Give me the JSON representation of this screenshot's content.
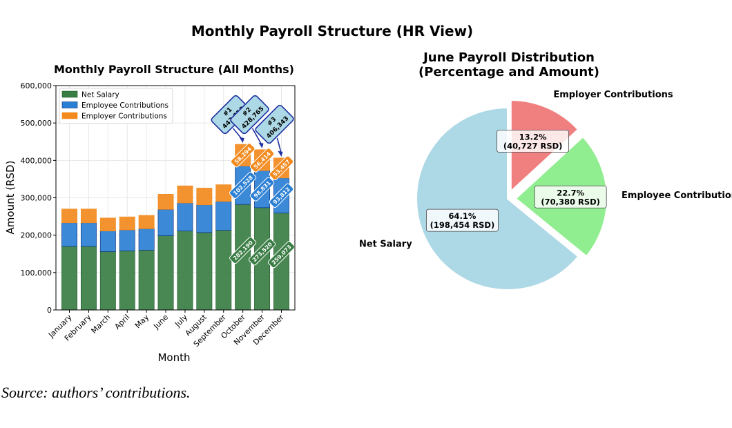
{
  "figure": {
    "suptitle": "Monthly Payroll Structure (HR View)",
    "caption": "Source: authors’ contributions."
  },
  "colors": {
    "net_salary": "#3a7d44",
    "employee_contributions": "#2a7fd4",
    "employer_contributions": "#f28a1e",
    "pie_net_salary": "#add8e6",
    "pie_employee": "#90ee90",
    "pie_employer": "#f08080",
    "callout_fill": "#add8e6",
    "callout_stroke": "#1c2ea0"
  },
  "chart_data": [
    {
      "type": "bar",
      "stacked": true,
      "title": "Monthly Payroll Structure (All Months)",
      "xlabel": "Month",
      "ylabel": "Amount (RSD)",
      "ylim": [
        0,
        600000
      ],
      "yticks": [
        "0",
        "100,000",
        "200,000",
        "300,000",
        "400,000",
        "500,000",
        "600,000"
      ],
      "grid": true,
      "legend_position": "upper-left",
      "categories": [
        "January",
        "February",
        "March",
        "April",
        "May",
        "June",
        "July",
        "August",
        "September",
        "October",
        "November",
        "December"
      ],
      "series": [
        {
          "name": "Net Salary",
          "values": [
            170000,
            170000,
            156000,
            158000,
            160000,
            198454,
            211000,
            207000,
            213000,
            282190,
            273520,
            259073
          ]
        },
        {
          "name": "Employee Contributions",
          "values": [
            63000,
            63000,
            55000,
            56000,
            57000,
            70380,
            75000,
            74000,
            77000,
            102528,
            98831,
            93812
          ]
        },
        {
          "name": "Employer Contributions",
          "values": [
            37000,
            37000,
            35000,
            35000,
            36000,
            40727,
            46000,
            45000,
            45000,
            58294,
            56414,
            53457
          ]
        }
      ],
      "value_labels": [
        {
          "month": "October",
          "net": "282,190",
          "employee": "102,528",
          "employer": "58,294"
        },
        {
          "month": "November",
          "net": "273,520",
          "employee": "98,831",
          "employer": "56,414"
        },
        {
          "month": "December",
          "net": "259,073",
          "employee": "93,812",
          "employer": "53,457"
        }
      ],
      "annotations": [
        {
          "month": "October",
          "rank": "#1",
          "total": "443,013"
        },
        {
          "month": "November",
          "rank": "#2",
          "total": "428,765"
        },
        {
          "month": "December",
          "rank": "#3",
          "total": "406,343"
        }
      ]
    },
    {
      "type": "pie",
      "title": "June Payroll Distribution\n(Percentage and Amount)",
      "slices": [
        {
          "label": "Net Salary",
          "value": 198454,
          "percent": "64.1%",
          "amount": "(198,454 RSD)",
          "explode": false
        },
        {
          "label": "Employee Contribution",
          "value": 70380,
          "percent": "22.7%",
          "amount": "(70,380 RSD)",
          "explode": true
        },
        {
          "label": "Employer Contributions",
          "value": 40727,
          "percent": "13.2%",
          "amount": "(40,727 RSD)",
          "explode": true
        }
      ]
    }
  ]
}
